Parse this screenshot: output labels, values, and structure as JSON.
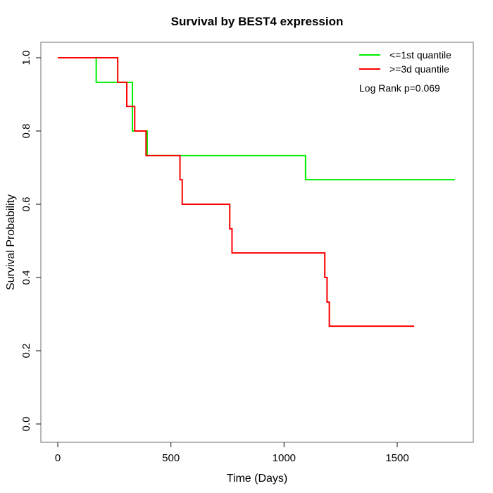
{
  "figure": {
    "background": "#ffffff",
    "box_color": "#888888",
    "tick_color": "#333333"
  },
  "chart_data": {
    "type": "line",
    "subtype": "kaplan-meier-step-curves",
    "title": "Survival by BEST4 expression",
    "xlabel": "Time (Days)",
    "ylabel": "Survival Probability",
    "xlim": [
      0,
      1800
    ],
    "ylim": [
      0.0,
      1.0
    ],
    "xticks": [
      "0",
      "500",
      "1000",
      "1500"
    ],
    "yticks": [
      "0.0",
      "0.2",
      "0.4",
      "0.6",
      "0.8",
      "1.0"
    ],
    "grid": false,
    "legend_position": "top-right",
    "annotation": "Log Rank p=0.069",
    "series": [
      {
        "name": "<=1st quantile",
        "color": "#00ee00",
        "x": [
          0,
          170,
          330,
          395,
          1095,
          1755
        ],
        "y": [
          1.0,
          0.933,
          0.8,
          0.733,
          0.667,
          0.667
        ]
      },
      {
        "name": ">=3d quantile",
        "color": "#ff0000",
        "x": [
          0,
          265,
          305,
          340,
          390,
          540,
          550,
          760,
          770,
          1180,
          1190,
          1200,
          1575
        ],
        "y": [
          1.0,
          0.933,
          0.867,
          0.8,
          0.733,
          0.667,
          0.6,
          0.533,
          0.467,
          0.4,
          0.333,
          0.267,
          0.267
        ]
      }
    ]
  }
}
